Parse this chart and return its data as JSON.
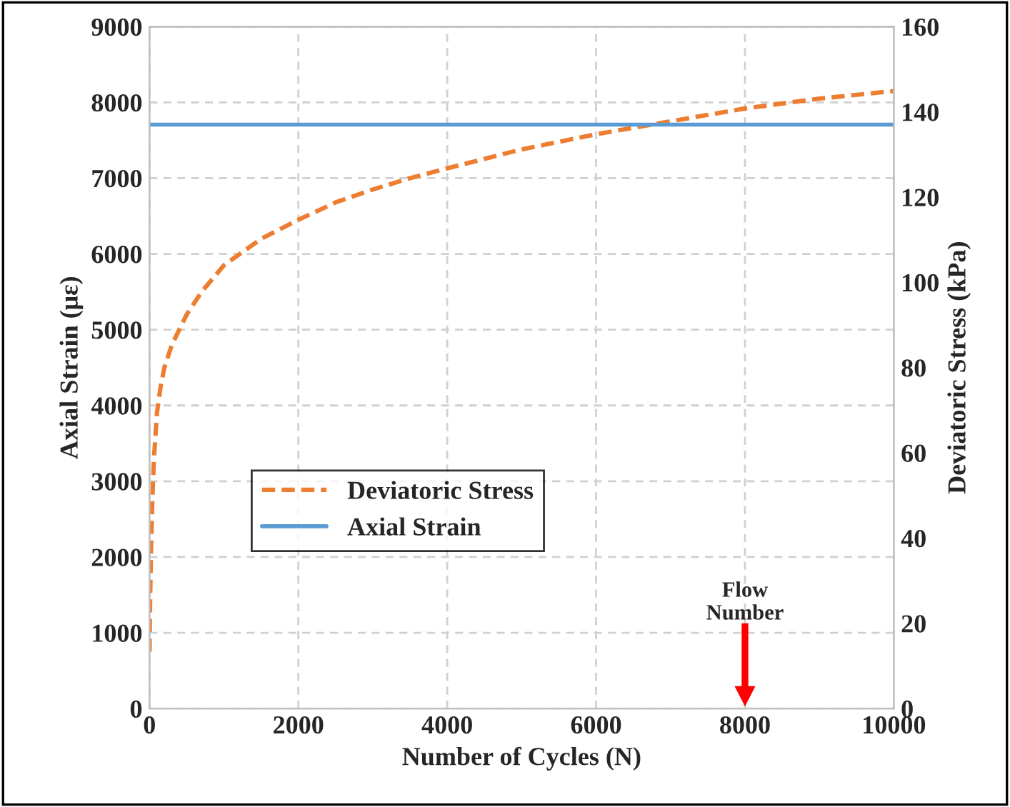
{
  "chart_data": {
    "type": "line",
    "xlabel": "Number of Cycles (N)",
    "ylabel": "Axial Strain (με)",
    "y2label": "Deviatoric Stress (kPa)",
    "series": [
      {
        "name": "Deviatoric Stress",
        "color": "#ed7d31",
        "line_style": "dashed",
        "x": [
          0,
          10,
          20,
          40,
          60,
          100,
          150,
          200,
          300,
          400,
          500,
          700,
          1000,
          1500,
          2000,
          2500,
          3000,
          3500,
          4000,
          5000,
          6000,
          7000,
          8000,
          9000,
          10000
        ],
        "values": [
          750,
          1500,
          2100,
          2800,
          3300,
          3900,
          4250,
          4500,
          4800,
          5000,
          5200,
          5500,
          5850,
          6200,
          6450,
          6680,
          6850,
          7000,
          7130,
          7380,
          7580,
          7750,
          7920,
          8050,
          8150
        ]
      },
      {
        "name": "Axial Strain",
        "color": "#5b9bd5",
        "line_style": "solid",
        "axis": "y2",
        "x": [
          0,
          10000
        ],
        "values": [
          137,
          137
        ]
      }
    ],
    "xlim": [
      0,
      10000
    ],
    "xticks": [
      0,
      2000,
      4000,
      6000,
      8000,
      10000
    ],
    "ylim": [
      0,
      9000
    ],
    "yticks": [
      0,
      1000,
      2000,
      3000,
      4000,
      5000,
      6000,
      7000,
      8000,
      9000
    ],
    "y2lim": [
      0,
      160
    ],
    "y2ticks": [
      0,
      20,
      40,
      60,
      80,
      100,
      120,
      140,
      160
    ],
    "grid": true,
    "legend": "left",
    "annotations": [
      "Flow\nNumber"
    ]
  }
}
